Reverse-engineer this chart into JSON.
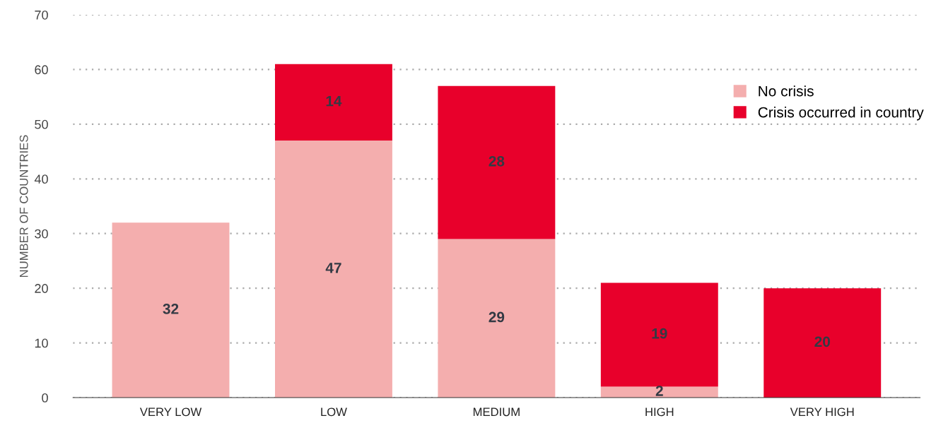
{
  "chart_data": {
    "type": "bar",
    "stacked": true,
    "ylabel": "NUMBER OF COUNTRIES",
    "categories": [
      "VERY LOW",
      "LOW",
      "MEDIUM",
      "HIGH",
      "VERY HIGH"
    ],
    "series": [
      {
        "name": "No crisis",
        "color": "#f4aeae",
        "values": [
          32,
          47,
          29,
          2,
          0
        ],
        "value_labels": [
          "32",
          "47",
          "29",
          "2",
          null
        ]
      },
      {
        "name": "Crisis occurred in country",
        "color": "#e8002b",
        "values": [
          0,
          14,
          28,
          19,
          20
        ],
        "value_labels": [
          null,
          "14",
          "28",
          "19",
          "20"
        ]
      }
    ],
    "ylim": [
      0,
      70
    ],
    "yticks": [
      0,
      10,
      20,
      30,
      40,
      50,
      60,
      70
    ],
    "grid": "y",
    "legend": "top right"
  }
}
